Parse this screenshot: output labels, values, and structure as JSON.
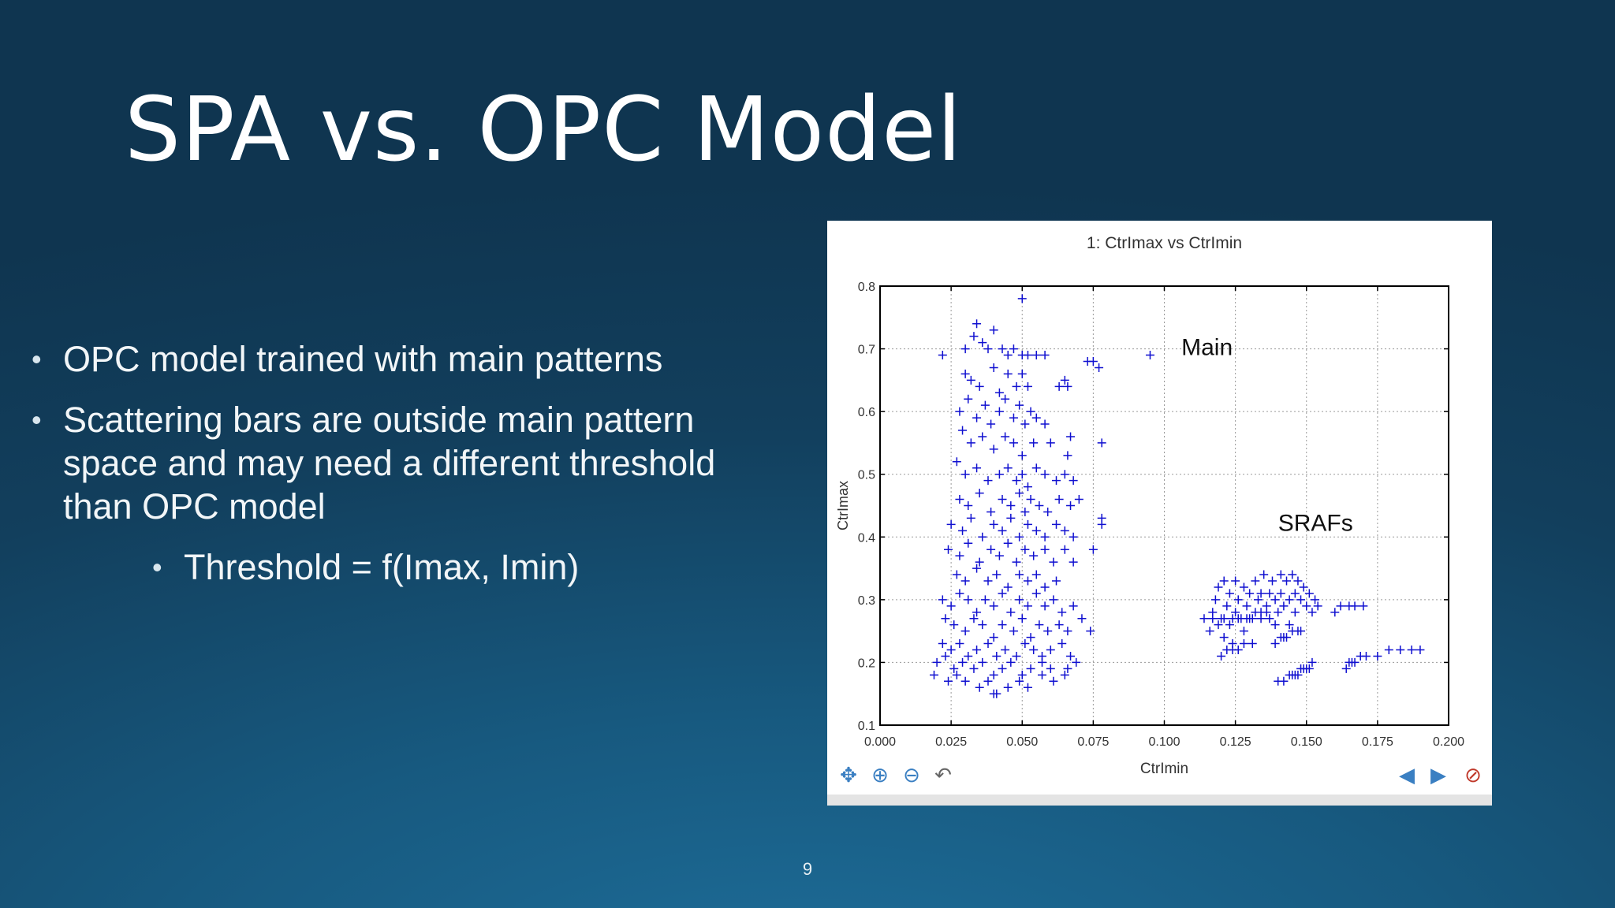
{
  "slide": {
    "title": "SPA vs. OPC Model",
    "page_number": "9",
    "bullets": [
      "OPC model trained with main patterns",
      "Scattering bars are outside main pattern space and may need a different threshold than OPC model"
    ],
    "sub_bullet": "Threshold = f(Imax, Imin)"
  },
  "toolbar": {
    "icons": [
      "move-icon",
      "zoom-in-icon",
      "zoom-out-icon",
      "undo-icon",
      "back-arrow-icon",
      "forward-arrow-icon",
      "clear-icon"
    ]
  },
  "colors": {
    "marker": "#1010d0",
    "accent": "#3a7fc2"
  },
  "chart_data": {
    "type": "scatter",
    "title": "1: CtrImax vs CtrImin",
    "xlabel": "CtrImin",
    "ylabel": "CtrImax",
    "xlim": [
      0.0,
      0.2
    ],
    "ylim": [
      0.1,
      0.8
    ],
    "xticks": [
      "0.000",
      "0.025",
      "0.050",
      "0.075",
      "0.100",
      "0.125",
      "0.150",
      "0.175",
      "0.200"
    ],
    "yticks": [
      "0.1",
      "0.2",
      "0.3",
      "0.4",
      "0.5",
      "0.6",
      "0.7",
      "0.8"
    ],
    "grid": true,
    "marker": "+",
    "annotations": [
      {
        "text": "Main",
        "x": 0.106,
        "y": 0.69
      },
      {
        "text": "SRAFs",
        "x": 0.14,
        "y": 0.41
      }
    ],
    "main_points": [
      [
        0.022,
        0.69
      ],
      [
        0.03,
        0.7
      ],
      [
        0.033,
        0.72
      ],
      [
        0.034,
        0.74
      ],
      [
        0.036,
        0.71
      ],
      [
        0.038,
        0.7
      ],
      [
        0.04,
        0.73
      ],
      [
        0.043,
        0.7
      ],
      [
        0.045,
        0.69
      ],
      [
        0.047,
        0.7
      ],
      [
        0.05,
        0.69
      ],
      [
        0.052,
        0.69
      ],
      [
        0.055,
        0.69
      ],
      [
        0.058,
        0.69
      ],
      [
        0.05,
        0.78
      ],
      [
        0.073,
        0.68
      ],
      [
        0.075,
        0.68
      ],
      [
        0.077,
        0.67
      ],
      [
        0.095,
        0.69
      ],
      [
        0.03,
        0.66
      ],
      [
        0.032,
        0.65
      ],
      [
        0.035,
        0.64
      ],
      [
        0.04,
        0.67
      ],
      [
        0.042,
        0.63
      ],
      [
        0.045,
        0.66
      ],
      [
        0.048,
        0.64
      ],
      [
        0.05,
        0.66
      ],
      [
        0.052,
        0.64
      ],
      [
        0.063,
        0.64
      ],
      [
        0.065,
        0.65
      ],
      [
        0.066,
        0.64
      ],
      [
        0.028,
        0.6
      ],
      [
        0.031,
        0.62
      ],
      [
        0.034,
        0.59
      ],
      [
        0.037,
        0.61
      ],
      [
        0.039,
        0.58
      ],
      [
        0.042,
        0.6
      ],
      [
        0.044,
        0.62
      ],
      [
        0.047,
        0.59
      ],
      [
        0.049,
        0.61
      ],
      [
        0.051,
        0.58
      ],
      [
        0.053,
        0.6
      ],
      [
        0.055,
        0.59
      ],
      [
        0.058,
        0.58
      ],
      [
        0.029,
        0.57
      ],
      [
        0.032,
        0.55
      ],
      [
        0.036,
        0.56
      ],
      [
        0.04,
        0.54
      ],
      [
        0.044,
        0.56
      ],
      [
        0.047,
        0.55
      ],
      [
        0.05,
        0.53
      ],
      [
        0.054,
        0.55
      ],
      [
        0.06,
        0.55
      ],
      [
        0.067,
        0.56
      ],
      [
        0.066,
        0.53
      ],
      [
        0.078,
        0.55
      ],
      [
        0.027,
        0.52
      ],
      [
        0.03,
        0.5
      ],
      [
        0.034,
        0.51
      ],
      [
        0.038,
        0.49
      ],
      [
        0.042,
        0.5
      ],
      [
        0.045,
        0.51
      ],
      [
        0.048,
        0.49
      ],
      [
        0.05,
        0.5
      ],
      [
        0.052,
        0.48
      ],
      [
        0.055,
        0.51
      ],
      [
        0.058,
        0.5
      ],
      [
        0.062,
        0.49
      ],
      [
        0.065,
        0.5
      ],
      [
        0.068,
        0.49
      ],
      [
        0.028,
        0.46
      ],
      [
        0.031,
        0.45
      ],
      [
        0.035,
        0.47
      ],
      [
        0.039,
        0.44
      ],
      [
        0.043,
        0.46
      ],
      [
        0.046,
        0.45
      ],
      [
        0.049,
        0.47
      ],
      [
        0.051,
        0.44
      ],
      [
        0.053,
        0.46
      ],
      [
        0.056,
        0.45
      ],
      [
        0.059,
        0.44
      ],
      [
        0.063,
        0.46
      ],
      [
        0.067,
        0.45
      ],
      [
        0.07,
        0.46
      ],
      [
        0.025,
        0.42
      ],
      [
        0.029,
        0.41
      ],
      [
        0.032,
        0.43
      ],
      [
        0.036,
        0.4
      ],
      [
        0.04,
        0.42
      ],
      [
        0.043,
        0.41
      ],
      [
        0.046,
        0.43
      ],
      [
        0.049,
        0.4
      ],
      [
        0.052,
        0.42
      ],
      [
        0.055,
        0.41
      ],
      [
        0.058,
        0.4
      ],
      [
        0.062,
        0.42
      ],
      [
        0.065,
        0.41
      ],
      [
        0.068,
        0.4
      ],
      [
        0.078,
        0.42
      ],
      [
        0.078,
        0.43
      ],
      [
        0.024,
        0.38
      ],
      [
        0.028,
        0.37
      ],
      [
        0.031,
        0.39
      ],
      [
        0.035,
        0.36
      ],
      [
        0.039,
        0.38
      ],
      [
        0.042,
        0.37
      ],
      [
        0.045,
        0.39
      ],
      [
        0.048,
        0.36
      ],
      [
        0.051,
        0.38
      ],
      [
        0.054,
        0.37
      ],
      [
        0.058,
        0.38
      ],
      [
        0.061,
        0.36
      ],
      [
        0.065,
        0.38
      ],
      [
        0.068,
        0.36
      ],
      [
        0.075,
        0.38
      ],
      [
        0.027,
        0.34
      ],
      [
        0.03,
        0.33
      ],
      [
        0.034,
        0.35
      ],
      [
        0.038,
        0.33
      ],
      [
        0.041,
        0.34
      ],
      [
        0.045,
        0.32
      ],
      [
        0.049,
        0.34
      ],
      [
        0.052,
        0.33
      ],
      [
        0.055,
        0.34
      ],
      [
        0.058,
        0.32
      ],
      [
        0.062,
        0.33
      ],
      [
        0.022,
        0.3
      ],
      [
        0.025,
        0.29
      ],
      [
        0.028,
        0.31
      ],
      [
        0.031,
        0.3
      ],
      [
        0.034,
        0.28
      ],
      [
        0.037,
        0.3
      ],
      [
        0.04,
        0.29
      ],
      [
        0.043,
        0.31
      ],
      [
        0.046,
        0.28
      ],
      [
        0.049,
        0.3
      ],
      [
        0.052,
        0.29
      ],
      [
        0.055,
        0.31
      ],
      [
        0.058,
        0.29
      ],
      [
        0.061,
        0.3
      ],
      [
        0.064,
        0.28
      ],
      [
        0.068,
        0.29
      ],
      [
        0.023,
        0.27
      ],
      [
        0.026,
        0.26
      ],
      [
        0.03,
        0.25
      ],
      [
        0.033,
        0.27
      ],
      [
        0.036,
        0.26
      ],
      [
        0.04,
        0.24
      ],
      [
        0.043,
        0.26
      ],
      [
        0.047,
        0.25
      ],
      [
        0.05,
        0.27
      ],
      [
        0.053,
        0.24
      ],
      [
        0.056,
        0.26
      ],
      [
        0.059,
        0.25
      ],
      [
        0.063,
        0.26
      ],
      [
        0.066,
        0.25
      ],
      [
        0.071,
        0.27
      ],
      [
        0.074,
        0.25
      ],
      [
        0.022,
        0.23
      ],
      [
        0.025,
        0.22
      ],
      [
        0.028,
        0.23
      ],
      [
        0.031,
        0.21
      ],
      [
        0.034,
        0.22
      ],
      [
        0.038,
        0.23
      ],
      [
        0.041,
        0.21
      ],
      [
        0.044,
        0.22
      ],
      [
        0.048,
        0.21
      ],
      [
        0.051,
        0.23
      ],
      [
        0.054,
        0.22
      ],
      [
        0.057,
        0.21
      ],
      [
        0.06,
        0.22
      ],
      [
        0.064,
        0.23
      ],
      [
        0.067,
        0.21
      ],
      [
        0.02,
        0.2
      ],
      [
        0.023,
        0.21
      ],
      [
        0.026,
        0.19
      ],
      [
        0.029,
        0.2
      ],
      [
        0.033,
        0.19
      ],
      [
        0.036,
        0.2
      ],
      [
        0.04,
        0.18
      ],
      [
        0.043,
        0.19
      ],
      [
        0.046,
        0.2
      ],
      [
        0.05,
        0.18
      ],
      [
        0.053,
        0.19
      ],
      [
        0.057,
        0.2
      ],
      [
        0.06,
        0.19
      ],
      [
        0.066,
        0.19
      ],
      [
        0.069,
        0.2
      ],
      [
        0.019,
        0.18
      ],
      [
        0.024,
        0.17
      ],
      [
        0.027,
        0.18
      ],
      [
        0.03,
        0.17
      ],
      [
        0.035,
        0.16
      ],
      [
        0.038,
        0.17
      ],
      [
        0.041,
        0.15
      ],
      [
        0.045,
        0.16
      ],
      [
        0.049,
        0.17
      ],
      [
        0.052,
        0.16
      ],
      [
        0.057,
        0.18
      ],
      [
        0.061,
        0.17
      ],
      [
        0.065,
        0.18
      ],
      [
        0.04,
        0.15
      ]
    ],
    "sraf_points": [
      [
        0.114,
        0.27
      ],
      [
        0.116,
        0.25
      ],
      [
        0.117,
        0.28
      ],
      [
        0.118,
        0.3
      ],
      [
        0.119,
        0.32
      ],
      [
        0.12,
        0.27
      ],
      [
        0.121,
        0.24
      ],
      [
        0.121,
        0.33
      ],
      [
        0.122,
        0.29
      ],
      [
        0.123,
        0.31
      ],
      [
        0.123,
        0.26
      ],
      [
        0.124,
        0.23
      ],
      [
        0.125,
        0.28
      ],
      [
        0.125,
        0.33
      ],
      [
        0.126,
        0.3
      ],
      [
        0.127,
        0.27
      ],
      [
        0.128,
        0.32
      ],
      [
        0.128,
        0.25
      ],
      [
        0.129,
        0.29
      ],
      [
        0.13,
        0.31
      ],
      [
        0.13,
        0.27
      ],
      [
        0.131,
        0.23
      ],
      [
        0.132,
        0.28
      ],
      [
        0.132,
        0.33
      ],
      [
        0.133,
        0.3
      ],
      [
        0.134,
        0.27
      ],
      [
        0.134,
        0.31
      ],
      [
        0.135,
        0.34
      ],
      [
        0.136,
        0.29
      ],
      [
        0.137,
        0.27
      ],
      [
        0.137,
        0.31
      ],
      [
        0.138,
        0.33
      ],
      [
        0.139,
        0.3
      ],
      [
        0.139,
        0.26
      ],
      [
        0.14,
        0.28
      ],
      [
        0.141,
        0.31
      ],
      [
        0.141,
        0.34
      ],
      [
        0.142,
        0.29
      ],
      [
        0.142,
        0.24
      ],
      [
        0.143,
        0.33
      ],
      [
        0.144,
        0.3
      ],
      [
        0.144,
        0.26
      ],
      [
        0.145,
        0.34
      ],
      [
        0.146,
        0.31
      ],
      [
        0.146,
        0.28
      ],
      [
        0.147,
        0.33
      ],
      [
        0.148,
        0.3
      ],
      [
        0.148,
        0.25
      ],
      [
        0.149,
        0.32
      ],
      [
        0.15,
        0.29
      ],
      [
        0.151,
        0.31
      ],
      [
        0.152,
        0.28
      ],
      [
        0.153,
        0.3
      ],
      [
        0.154,
        0.29
      ],
      [
        0.117,
        0.27
      ],
      [
        0.119,
        0.26
      ],
      [
        0.121,
        0.27
      ],
      [
        0.124,
        0.27
      ],
      [
        0.126,
        0.27
      ],
      [
        0.129,
        0.27
      ],
      [
        0.131,
        0.27
      ],
      [
        0.134,
        0.28
      ],
      [
        0.136,
        0.28
      ],
      [
        0.12,
        0.21
      ],
      [
        0.122,
        0.22
      ],
      [
        0.124,
        0.22
      ],
      [
        0.126,
        0.22
      ],
      [
        0.128,
        0.23
      ],
      [
        0.139,
        0.23
      ],
      [
        0.141,
        0.24
      ],
      [
        0.143,
        0.24
      ],
      [
        0.145,
        0.25
      ],
      [
        0.147,
        0.25
      ],
      [
        0.16,
        0.28
      ],
      [
        0.162,
        0.29
      ],
      [
        0.165,
        0.29
      ],
      [
        0.167,
        0.29
      ],
      [
        0.17,
        0.29
      ],
      [
        0.14,
        0.17
      ],
      [
        0.142,
        0.17
      ],
      [
        0.144,
        0.18
      ],
      [
        0.145,
        0.18
      ],
      [
        0.146,
        0.18
      ],
      [
        0.147,
        0.18
      ],
      [
        0.148,
        0.19
      ],
      [
        0.149,
        0.19
      ],
      [
        0.15,
        0.19
      ],
      [
        0.151,
        0.19
      ],
      [
        0.152,
        0.2
      ],
      [
        0.164,
        0.19
      ],
      [
        0.165,
        0.2
      ],
      [
        0.166,
        0.2
      ],
      [
        0.167,
        0.2
      ],
      [
        0.169,
        0.21
      ],
      [
        0.171,
        0.21
      ],
      [
        0.175,
        0.21
      ],
      [
        0.179,
        0.22
      ],
      [
        0.183,
        0.22
      ],
      [
        0.187,
        0.22
      ],
      [
        0.19,
        0.22
      ]
    ]
  }
}
